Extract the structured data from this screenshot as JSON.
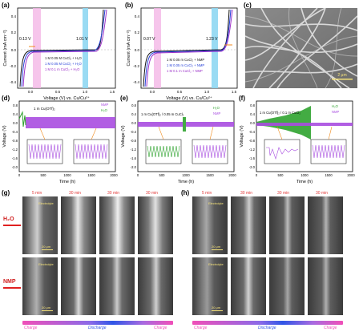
{
  "panels": {
    "a": {
      "label": "(a)",
      "ylabel": "Current (mA cm⁻²)",
      "xlabel": "Voltage (V) vs. Cu/Cu²⁺",
      "ann_left": "0.13 V",
      "ann_right": "1.01 V",
      "legend": [
        "1 M 0.05 M CuCl₂ + H₂O",
        "1 M 0.05 M CuCl₂ + H₂O",
        "1 M 0.1 m CuCl₂ + H₂O"
      ],
      "xticks": [
        "0.0",
        "0.5",
        "1.0",
        "1.5"
      ],
      "yticks": [
        "0.4",
        "0.2",
        "0.0",
        "-0.2",
        "-0.4"
      ]
    },
    "b": {
      "label": "(b)",
      "ylabel": "Current (mA cm⁻²)",
      "xlabel": "Voltage (V) vs. Cu/Cu²⁺",
      "ann_left": "0.07 V",
      "ann_right": "1.23 V",
      "legend": [
        "1 M 0.05 m CuCl₂ + NMP",
        "1 M 0.05 m CuCl₂ + NMP",
        "1 M 0.1 m CuCl₂ + NMP"
      ],
      "xticks": [
        "0.0",
        "0.5",
        "1.0",
        "1.5"
      ],
      "yticks": [
        "0.4",
        "0.2",
        "0.0",
        "-0.2",
        "-0.4"
      ]
    },
    "c": {
      "label": "(c)",
      "scale": "2 μm"
    },
    "d": {
      "label": "(d)",
      "title": "1 m Cu(OTf)₂",
      "legend": [
        "NMP",
        "H₂O"
      ],
      "ylabel": "Voltage (V)",
      "xlabel": "Time (h)",
      "xticks": [
        "0",
        "500",
        "1000",
        "1500",
        "2000"
      ],
      "yticks": [
        "0.8",
        "0.4",
        "0.0",
        "-0.4",
        "-0.8",
        "-1.2",
        "-1.6",
        "-2.0"
      ]
    },
    "e": {
      "label": "(e)",
      "title": "1 m Cu(OTf)₂ / 0.05 m CuCl₂",
      "legend": [
        "H₂O",
        "NMP"
      ],
      "ylabel": "Voltage (V)",
      "xlabel": "Time (h)",
      "xticks": [
        "0",
        "500",
        "1000",
        "1500",
        "2000"
      ],
      "yticks": [
        "0.8",
        "0.4",
        "0.0",
        "-0.4",
        "-0.8",
        "-1.2",
        "-1.6",
        "-2.0"
      ]
    },
    "f": {
      "label": "(f)",
      "title": "1 m Cu(OTf)₂ / 0.1 m CuCl₂",
      "legend": [
        "H₂O",
        "NMP"
      ],
      "ylabel": "Voltage (V)",
      "xlabel": "Time (h)",
      "xticks": [
        "0",
        "500",
        "1000",
        "1500",
        "2000"
      ],
      "yticks": [
        "0.8",
        "0.4",
        "0.0",
        "-0.4",
        "-0.8",
        "-1.2",
        "-1.6",
        "-2.0"
      ]
    },
    "g": {
      "label": "(g)",
      "times": [
        "5 min",
        "30 min",
        "30 min",
        "30 min"
      ],
      "rows": [
        "H₂O",
        "NMP"
      ],
      "electrolyte": "Electrolyte",
      "scale": "20 μm",
      "arrow": [
        "Charge",
        "Discharge",
        "Charge"
      ]
    },
    "h": {
      "label": "(h)",
      "times": [
        "5 min",
        "30 min",
        "30 min",
        "30 min"
      ],
      "electrolyte": "Electrolyte",
      "scale": "20 μm",
      "arrow": [
        "Charge",
        "Discharge",
        "Charge"
      ]
    }
  },
  "colors": {
    "black": "#111111",
    "blue": "#2741d8",
    "purple": "#9b30c8",
    "green": "#2fa32f",
    "violet": "#a84de0",
    "pink": "#f4b6e6",
    "cyan": "#8fd7f2",
    "orange": "#f08a1c",
    "red": "#e02020",
    "arrowPink": "#f04fb8",
    "arrowBlue": "#2f55e6"
  }
}
